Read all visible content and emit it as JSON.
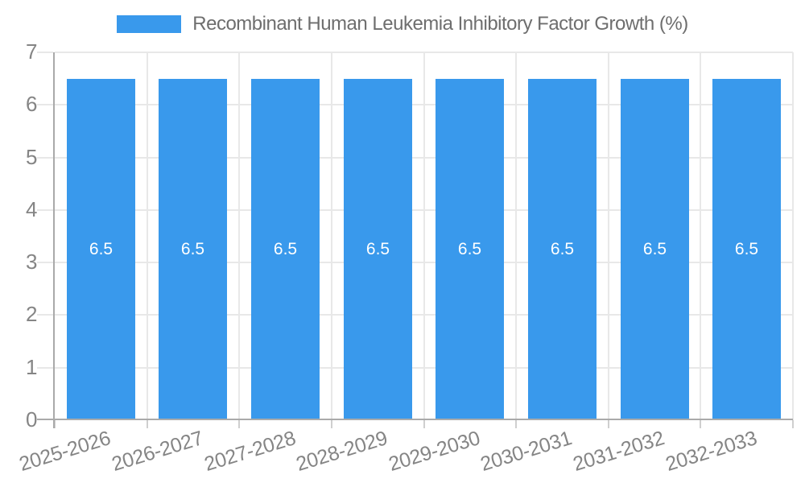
{
  "chart_data": {
    "type": "bar",
    "title": "Recombinant Human Leukemia Inhibitory Factor Growth (%)",
    "categories": [
      "2025-2026",
      "2026-2027",
      "2027-2028",
      "2028-2029",
      "2029-2030",
      "2030-2031",
      "2031-2032",
      "2032-2033"
    ],
    "values": [
      6.5,
      6.5,
      6.5,
      6.5,
      6.5,
      6.5,
      6.5,
      6.5
    ],
    "value_labels": [
      "6.5",
      "6.5",
      "6.5",
      "6.5",
      "6.5",
      "6.5",
      "6.5",
      "6.5"
    ],
    "xlabel": "",
    "ylabel": "",
    "ylim": [
      0,
      7
    ],
    "yticks": [
      0,
      1,
      2,
      3,
      4,
      5,
      6,
      7
    ],
    "grid": true,
    "vertical_grid": true,
    "legend_position": "top-center",
    "bar_label_position": "inside-center",
    "bar_color": "#3999EC",
    "bar_label_color": "#FFFFFF",
    "grid_color": "#E8E8E8",
    "axis_line_color": "#AAAAAA",
    "axis_text_color": "#858585",
    "legend_text_color": "#6E6E6E"
  }
}
